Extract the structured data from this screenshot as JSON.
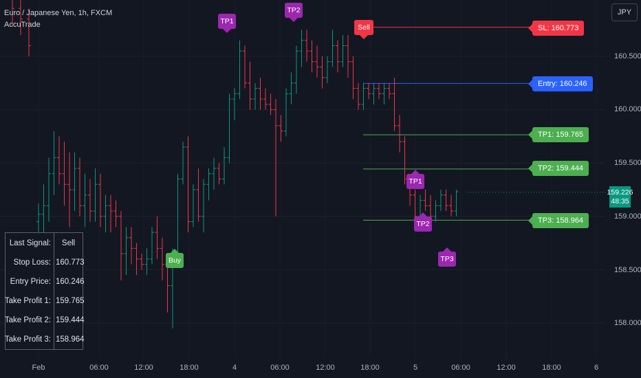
{
  "header": {
    "symbol_title": "Euro / Japanese Yen, 1h, FXCM",
    "indicator_name": "AccuTrade",
    "currency_button": "JPY"
  },
  "colors": {
    "background": "#131722",
    "up_candle": "#089981",
    "down_candle": "#f23645",
    "sell_red": "#f23645",
    "entry_blue": "#2962ff",
    "tp_green": "#4caf50",
    "tp_marker_purple": "#9c27b0",
    "buy_green": "#4caf50"
  },
  "signal_panel": {
    "rows": [
      {
        "label": "Last Signal:",
        "value": "Sell"
      },
      {
        "label": "Stop Loss:",
        "value": "160.773"
      },
      {
        "label": "Entry Price:",
        "value": "160.246"
      },
      {
        "label": "Take Profit 1:",
        "value": "159.765"
      },
      {
        "label": "Take Profit 2:",
        "value": "159.444"
      },
      {
        "label": "Take Profit 3:",
        "value": "158.964"
      }
    ]
  },
  "levels": {
    "sl": {
      "label": "SL: 160.773",
      "price": 160.773
    },
    "entry": {
      "label": "Entry: 160.246",
      "price": 160.246
    },
    "tp1": {
      "label": "TP1: 159.765",
      "price": 159.765
    },
    "tp2": {
      "label": "TP2: 159.444",
      "price": 159.444
    },
    "tp3": {
      "label": "TP3: 158.964",
      "price": 158.964
    }
  },
  "markers": {
    "buy": "Buy",
    "sell": "Sell",
    "tp1_top": "TP1",
    "tp2_top": "TP2",
    "tp1_lower": "TP1",
    "tp2_lower": "TP2",
    "tp3_lower": "TP3"
  },
  "price_axis": {
    "ticks": [
      "160.500",
      "160.000",
      "159.500",
      "159.000",
      "158.500",
      "158.000"
    ],
    "current_price": "159.226",
    "countdown": "48:35"
  },
  "time_axis": {
    "ticks": [
      "Feb",
      "06:00",
      "12:00",
      "18:00",
      "4",
      "06:00",
      "12:00",
      "18:00",
      "5",
      "06:00",
      "12:00",
      "18:00",
      "6"
    ]
  },
  "chart_data": {
    "type": "candlestick",
    "title": "Euro / Japanese Yen, 1h, FXCM",
    "ylim": [
      157.8,
      161.2
    ],
    "columns": [
      "open",
      "high",
      "low",
      "close"
    ],
    "candles": [
      [
        161.1,
        161.2,
        160.78,
        160.95
      ],
      [
        160.95,
        161.12,
        160.7,
        160.85
      ],
      [
        160.85,
        160.95,
        160.5,
        160.6
      ],
      [
        158.95,
        159.12,
        158.55,
        159.02
      ],
      [
        159.02,
        159.3,
        158.8,
        159.1
      ],
      [
        159.1,
        159.55,
        158.95,
        159.4
      ],
      [
        159.4,
        159.8,
        159.2,
        159.55
      ],
      [
        159.55,
        159.75,
        159.3,
        159.4
      ],
      [
        159.4,
        159.7,
        159.1,
        159.3
      ],
      [
        159.3,
        159.6,
        158.9,
        159.25
      ],
      [
        159.25,
        159.6,
        159.05,
        159.45
      ],
      [
        159.45,
        159.55,
        159.0,
        159.1
      ],
      [
        159.1,
        159.4,
        158.9,
        159.2
      ],
      [
        159.2,
        159.35,
        158.95,
        159.05
      ],
      [
        159.05,
        159.45,
        158.95,
        159.3
      ],
      [
        159.3,
        159.4,
        158.9,
        159.0
      ],
      [
        159.0,
        159.2,
        158.85,
        159.1
      ],
      [
        159.1,
        159.2,
        158.85,
        159.05
      ],
      [
        159.05,
        159.15,
        158.9,
        159.0
      ],
      [
        159.0,
        159.05,
        158.4,
        158.65
      ],
      [
        158.65,
        158.9,
        158.45,
        158.8
      ],
      [
        158.8,
        158.9,
        158.55,
        158.7
      ],
      [
        158.7,
        158.75,
        158.45,
        158.6
      ],
      [
        158.6,
        158.65,
        158.5,
        158.55
      ],
      [
        158.55,
        158.7,
        158.45,
        158.6
      ],
      [
        158.6,
        158.9,
        158.55,
        158.85
      ],
      [
        158.85,
        159.0,
        158.6,
        158.7
      ],
      [
        158.7,
        158.8,
        158.4,
        158.55
      ],
      [
        158.55,
        158.65,
        158.1,
        158.35
      ],
      [
        158.35,
        158.7,
        157.95,
        158.6
      ],
      [
        158.6,
        159.4,
        158.55,
        159.35
      ],
      [
        159.35,
        159.7,
        159.3,
        159.65
      ],
      [
        159.65,
        159.75,
        158.85,
        158.95
      ],
      [
        158.95,
        159.3,
        158.9,
        159.25
      ],
      [
        159.25,
        159.45,
        158.95,
        159.0
      ],
      [
        159.0,
        159.35,
        158.85,
        159.3
      ],
      [
        159.3,
        159.45,
        159.15,
        159.4
      ],
      [
        159.4,
        159.55,
        159.25,
        159.45
      ],
      [
        159.45,
        159.5,
        159.3,
        159.35
      ],
      [
        159.35,
        159.65,
        159.3,
        159.55
      ],
      [
        159.55,
        160.15,
        159.5,
        160.1
      ],
      [
        160.1,
        160.2,
        159.9,
        160.15
      ],
      [
        160.15,
        160.65,
        160.1,
        160.55
      ],
      [
        160.55,
        160.6,
        160.2,
        160.25
      ],
      [
        160.25,
        160.45,
        160.0,
        160.1
      ],
      [
        160.1,
        160.25,
        160.0,
        160.2
      ],
      [
        160.2,
        160.3,
        160.0,
        160.1
      ],
      [
        160.1,
        160.2,
        160.0,
        160.05
      ],
      [
        160.05,
        160.15,
        159.95,
        160.0
      ],
      [
        160.0,
        160.1,
        159.0,
        159.85
      ],
      [
        159.85,
        159.95,
        159.7,
        159.8
      ],
      [
        159.8,
        160.2,
        159.75,
        160.15
      ],
      [
        160.15,
        160.35,
        160.05,
        160.25
      ],
      [
        160.25,
        160.6,
        160.15,
        160.55
      ],
      [
        160.55,
        160.75,
        160.4,
        160.65
      ],
      [
        160.65,
        160.75,
        160.45,
        160.55
      ],
      [
        160.55,
        160.65,
        160.35,
        160.45
      ],
      [
        160.45,
        160.6,
        160.3,
        160.4
      ],
      [
        160.4,
        160.5,
        160.2,
        160.3
      ],
      [
        160.3,
        160.5,
        160.25,
        160.45
      ],
      [
        160.45,
        160.75,
        160.4,
        160.6
      ],
      [
        160.6,
        160.65,
        160.35,
        160.45
      ],
      [
        160.45,
        160.7,
        160.4,
        160.6
      ],
      [
        160.6,
        160.7,
        160.3,
        160.45
      ],
      [
        160.45,
        160.5,
        160.1,
        160.2
      ],
      [
        160.2,
        160.25,
        160.0,
        160.05
      ],
      [
        160.05,
        160.25,
        160.0,
        160.2
      ],
      [
        160.2,
        160.25,
        160.1,
        160.15
      ],
      [
        160.15,
        160.25,
        160.05,
        160.2
      ],
      [
        160.2,
        160.25,
        160.1,
        160.15
      ],
      [
        160.15,
        160.25,
        160.05,
        160.2
      ],
      [
        160.2,
        160.25,
        160.1,
        160.15
      ],
      [
        160.15,
        160.3,
        159.8,
        159.85
      ],
      [
        159.85,
        159.95,
        159.6,
        159.7
      ],
      [
        159.7,
        159.75,
        159.3,
        159.35
      ],
      [
        159.35,
        159.4,
        159.1,
        159.2
      ],
      [
        159.2,
        159.25,
        158.95,
        159.0
      ],
      [
        159.0,
        159.2,
        158.95,
        159.15
      ],
      [
        159.15,
        159.25,
        159.05,
        159.1
      ],
      [
        159.1,
        159.2,
        158.9,
        159.0
      ],
      [
        159.0,
        159.15,
        158.95,
        159.1
      ],
      [
        159.1,
        159.25,
        159.05,
        159.2
      ],
      [
        159.2,
        159.25,
        159.05,
        159.1
      ],
      [
        159.1,
        159.2,
        159.0,
        159.05
      ],
      [
        159.05,
        159.25,
        159.0,
        159.23
      ]
    ]
  }
}
